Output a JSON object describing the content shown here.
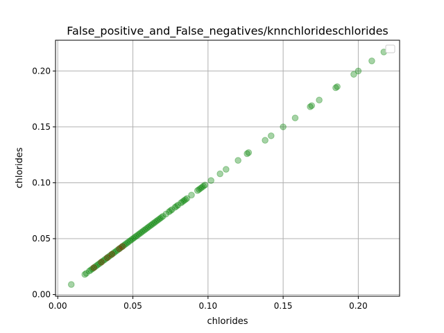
{
  "chart_data": {
    "type": "scatter",
    "title": "False_positive_and_False_negatives/knnchlorideschlorides",
    "xlabel": "chlorides",
    "ylabel": "chlorides",
    "xlim": [
      -0.0015,
      0.2275
    ],
    "ylim": [
      -0.0015,
      0.2275
    ],
    "xticks": [
      0.0,
      0.05,
      0.1,
      0.15,
      0.2
    ],
    "yticks": [
      0.0,
      0.05,
      0.1,
      0.15,
      0.2
    ],
    "xtick_labels": [
      "0.00",
      "0.05",
      "0.10",
      "0.15",
      "0.20"
    ],
    "ytick_labels": [
      "0.00",
      "0.05",
      "0.10",
      "0.15",
      "0.20"
    ],
    "grid": true,
    "legend": "top-right (empty)",
    "colors": {
      "correct": "#008000",
      "misclassified": "#8b2500",
      "grid": "#b0b0b0"
    },
    "series": [
      {
        "color": "#008000",
        "points": [
          [
            0.009,
            0.009
          ],
          [
            0.018,
            0.018
          ],
          [
            0.019,
            0.019
          ],
          [
            0.021,
            0.021
          ],
          [
            0.022,
            0.022
          ],
          [
            0.023,
            0.023
          ],
          [
            0.024,
            0.024
          ],
          [
            0.025,
            0.025
          ],
          [
            0.026,
            0.026
          ],
          [
            0.027,
            0.027
          ],
          [
            0.028,
            0.028
          ],
          [
            0.029,
            0.029
          ],
          [
            0.03,
            0.03
          ],
          [
            0.031,
            0.031
          ],
          [
            0.032,
            0.032
          ],
          [
            0.033,
            0.033
          ],
          [
            0.034,
            0.034
          ],
          [
            0.035,
            0.035
          ],
          [
            0.036,
            0.036
          ],
          [
            0.037,
            0.037
          ],
          [
            0.038,
            0.038
          ],
          [
            0.039,
            0.039
          ],
          [
            0.04,
            0.04
          ],
          [
            0.041,
            0.041
          ],
          [
            0.042,
            0.042
          ],
          [
            0.043,
            0.043
          ],
          [
            0.044,
            0.044
          ],
          [
            0.045,
            0.045
          ],
          [
            0.046,
            0.046
          ],
          [
            0.047,
            0.047
          ],
          [
            0.048,
            0.048
          ],
          [
            0.049,
            0.049
          ],
          [
            0.05,
            0.05
          ],
          [
            0.051,
            0.051
          ],
          [
            0.052,
            0.052
          ],
          [
            0.053,
            0.053
          ],
          [
            0.054,
            0.054
          ],
          [
            0.055,
            0.055
          ],
          [
            0.056,
            0.056
          ],
          [
            0.057,
            0.057
          ],
          [
            0.058,
            0.058
          ],
          [
            0.059,
            0.059
          ],
          [
            0.06,
            0.06
          ],
          [
            0.061,
            0.061
          ],
          [
            0.062,
            0.062
          ],
          [
            0.063,
            0.063
          ],
          [
            0.064,
            0.064
          ],
          [
            0.065,
            0.065
          ],
          [
            0.066,
            0.066
          ],
          [
            0.067,
            0.067
          ],
          [
            0.068,
            0.068
          ],
          [
            0.069,
            0.069
          ],
          [
            0.07,
            0.07
          ],
          [
            0.072,
            0.072
          ],
          [
            0.074,
            0.074
          ],
          [
            0.075,
            0.075
          ],
          [
            0.076,
            0.076
          ],
          [
            0.078,
            0.078
          ],
          [
            0.079,
            0.079
          ],
          [
            0.08,
            0.08
          ],
          [
            0.082,
            0.082
          ],
          [
            0.083,
            0.083
          ],
          [
            0.084,
            0.084
          ],
          [
            0.085,
            0.085
          ],
          [
            0.086,
            0.086
          ],
          [
            0.089,
            0.089
          ],
          [
            0.093,
            0.093
          ],
          [
            0.094,
            0.094
          ],
          [
            0.095,
            0.095
          ],
          [
            0.096,
            0.096
          ],
          [
            0.097,
            0.097
          ],
          [
            0.098,
            0.098
          ],
          [
            0.102,
            0.102
          ],
          [
            0.108,
            0.108
          ],
          [
            0.112,
            0.112
          ],
          [
            0.12,
            0.12
          ],
          [
            0.126,
            0.126
          ],
          [
            0.127,
            0.127
          ],
          [
            0.138,
            0.138
          ],
          [
            0.142,
            0.142
          ],
          [
            0.15,
            0.15
          ],
          [
            0.158,
            0.158
          ],
          [
            0.168,
            0.168
          ],
          [
            0.169,
            0.169
          ],
          [
            0.174,
            0.174
          ],
          [
            0.185,
            0.185
          ],
          [
            0.186,
            0.186
          ],
          [
            0.197,
            0.197
          ],
          [
            0.2,
            0.2
          ],
          [
            0.209,
            0.209
          ],
          [
            0.217,
            0.217
          ]
        ]
      },
      {
        "color": "#8b2500",
        "points": [
          [
            0.024,
            0.024
          ],
          [
            0.029,
            0.029
          ],
          [
            0.033,
            0.033
          ],
          [
            0.036,
            0.036
          ],
          [
            0.041,
            0.041
          ],
          [
            0.043,
            0.043
          ]
        ]
      }
    ]
  }
}
